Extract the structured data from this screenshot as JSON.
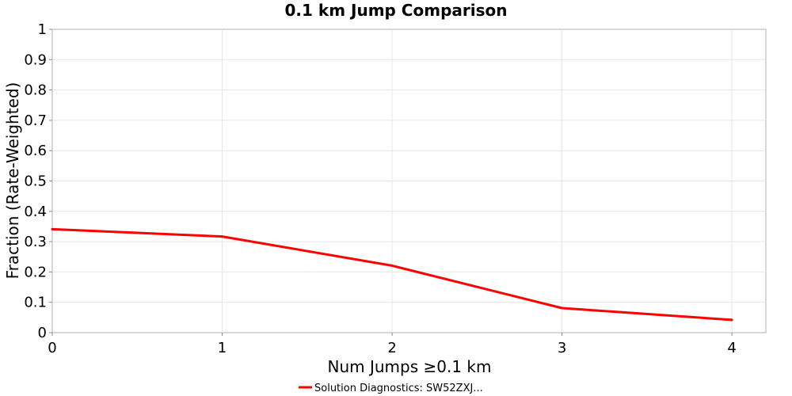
{
  "chart_data": {
    "type": "line",
    "title": "0.1 km Jump Comparison",
    "xlabel": "Num Jumps ≥0.1 km",
    "ylabel": "Fraction (Rate-Weighted)",
    "xlim": [
      0,
      4.2
    ],
    "ylim": [
      0,
      1
    ],
    "x_ticks": [
      0,
      1,
      2,
      3,
      4
    ],
    "y_ticks": [
      0,
      0.1,
      0.2,
      0.3,
      0.4,
      0.5,
      0.6,
      0.7,
      0.8,
      0.9,
      1
    ],
    "grid": true,
    "legend_position": "bottom",
    "series": [
      {
        "name": "Solution Diagnostics: SW52ZXJ...",
        "color": "#ff0000",
        "x": [
          0,
          1,
          2,
          3,
          4
        ],
        "y": [
          0.341,
          0.317,
          0.221,
          0.081,
          0.042
        ]
      }
    ]
  }
}
